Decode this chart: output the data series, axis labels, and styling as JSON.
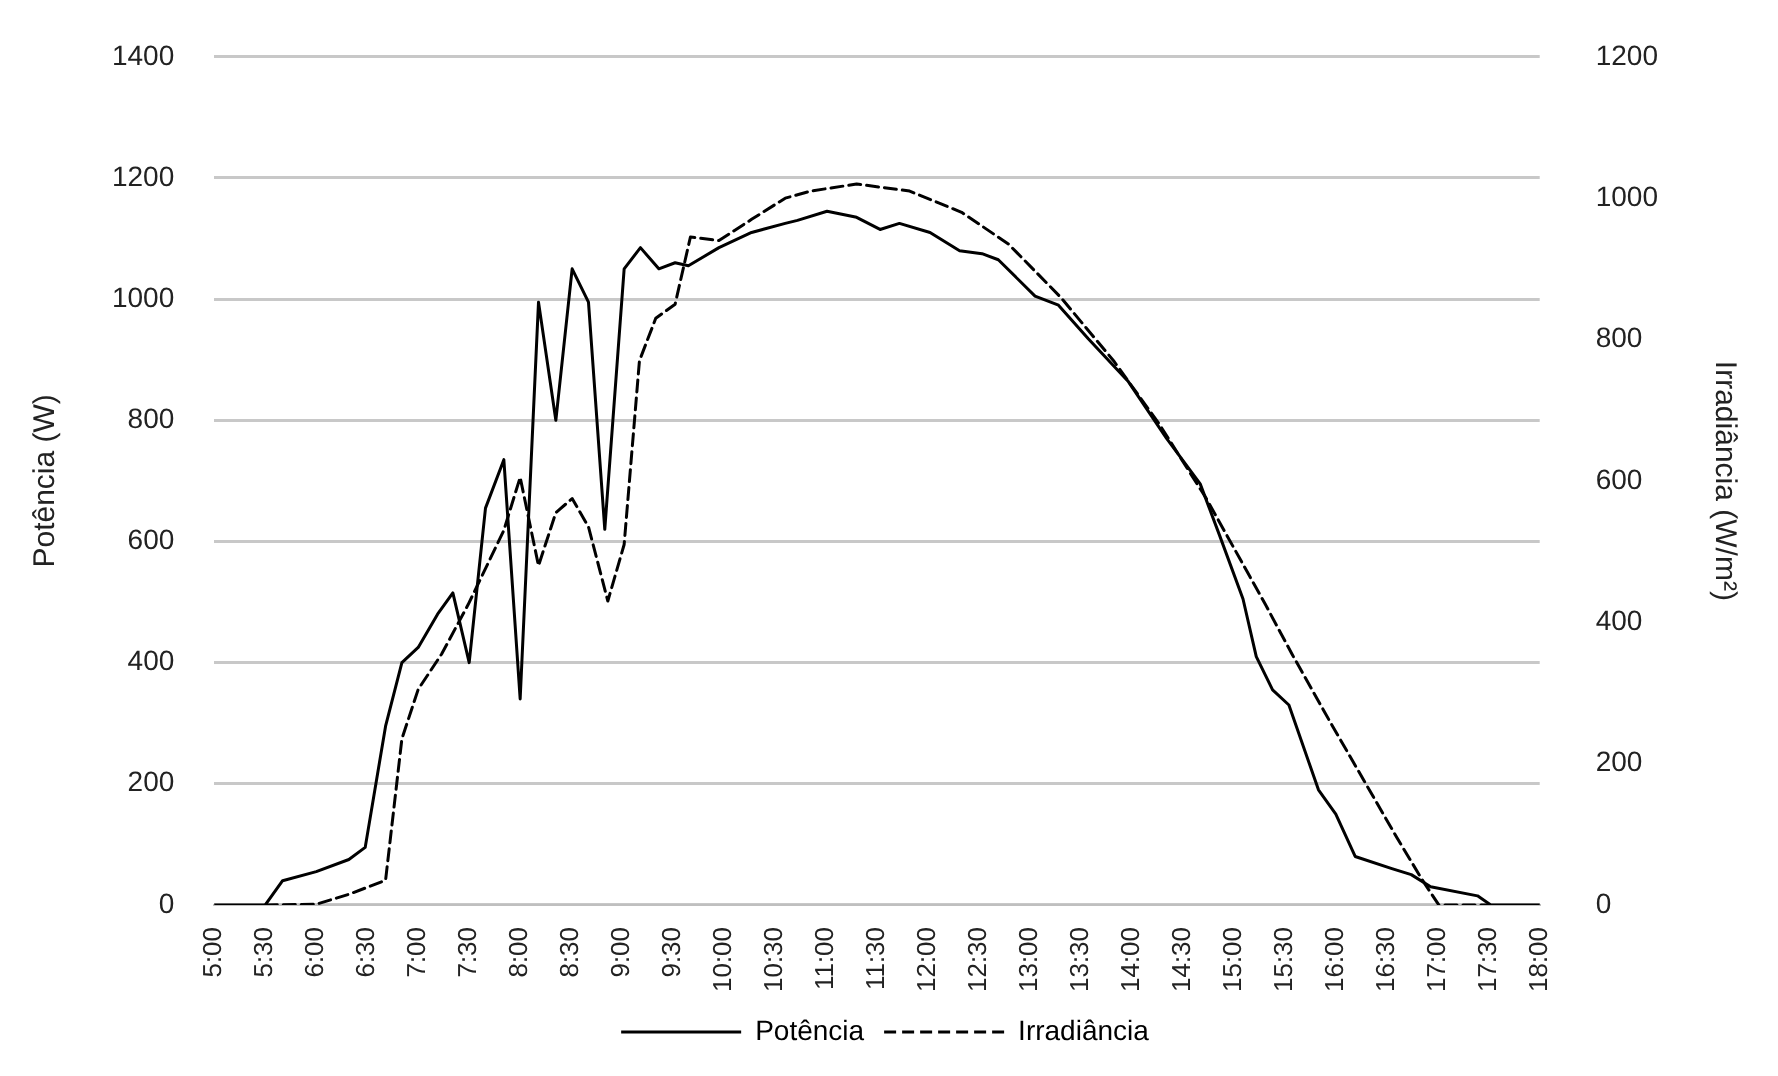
{
  "chart_data": {
    "type": "line",
    "xlim": [
      5,
      18
    ],
    "xticks": [
      {
        "value": 5,
        "label": "5:00"
      },
      {
        "value": 5.5,
        "label": "5:30"
      },
      {
        "value": 6,
        "label": "6:00"
      },
      {
        "value": 6.5,
        "label": "6:30"
      },
      {
        "value": 7,
        "label": "7:00"
      },
      {
        "value": 7.5,
        "label": "7:30"
      },
      {
        "value": 8,
        "label": "8:00"
      },
      {
        "value": 8.5,
        "label": "8:30"
      },
      {
        "value": 9,
        "label": "9:00"
      },
      {
        "value": 9.5,
        "label": "9:30"
      },
      {
        "value": 10,
        "label": "10:00"
      },
      {
        "value": 10.5,
        "label": "10:30"
      },
      {
        "value": 11,
        "label": "11:00"
      },
      {
        "value": 11.5,
        "label": "11:30"
      },
      {
        "value": 12,
        "label": "12:00"
      },
      {
        "value": 12.5,
        "label": "12:30"
      },
      {
        "value": 13,
        "label": "13:00"
      },
      {
        "value": 13.5,
        "label": "13:30"
      },
      {
        "value": 14,
        "label": "14:00"
      },
      {
        "value": 14.5,
        "label": "14:30"
      },
      {
        "value": 15,
        "label": "15:00"
      },
      {
        "value": 15.5,
        "label": "15:30"
      },
      {
        "value": 16,
        "label": "16:00"
      },
      {
        "value": 16.5,
        "label": "16:30"
      },
      {
        "value": 17,
        "label": "17:00"
      },
      {
        "value": 17.5,
        "label": "17:30"
      },
      {
        "value": 18,
        "label": "18:00"
      }
    ],
    "ylabel": "Potência (W)",
    "y2label": "Irradiância (W/m²)",
    "ylim": [
      0,
      1400
    ],
    "yticks": [
      0,
      200,
      400,
      600,
      800,
      1000,
      1200,
      1400
    ],
    "y2lim": [
      0,
      1200
    ],
    "y2ticks": [
      0,
      200,
      400,
      600,
      800,
      1000,
      1200
    ],
    "grid": "y",
    "legend": "bottom",
    "marker": "none",
    "series": [
      {
        "name": "Potência",
        "color": "#000000",
        "line_style": "solid",
        "x": [
          5,
          5.5,
          5.67,
          6,
          6.32,
          6.48,
          6.68,
          6.84,
          7,
          7.19,
          7.34,
          7.5,
          7.66,
          7.84,
          8,
          8.18,
          8.35,
          8.51,
          8.67,
          8.83,
          9.02,
          9.18,
          9.36,
          9.52,
          9.65,
          9.95,
          10.27,
          10.6,
          10.72,
          11.01,
          11.3,
          11.53,
          11.72,
          12.02,
          12.31,
          12.53,
          12.69,
          13.05,
          13.28,
          13.57,
          13.96,
          14.34,
          14.67,
          14.86,
          15.09,
          15.22,
          15.38,
          15.54,
          15.83,
          16,
          16.19,
          16.55,
          16.74,
          16.93,
          17.39,
          17.52,
          18
        ],
        "values": [
          0,
          0,
          40,
          55,
          75,
          95,
          295,
          400,
          425,
          480,
          515,
          400,
          655,
          735,
          340,
          995,
          800,
          1050,
          995,
          620,
          1050,
          1085,
          1050,
          1060,
          1055,
          1085,
          1110,
          1125,
          1130,
          1145,
          1135,
          1115,
          1125,
          1110,
          1080,
          1075,
          1065,
          1005,
          990,
          935,
          865,
          770,
          695,
          610,
          505,
          410,
          355,
          330,
          190,
          150,
          80,
          60,
          50,
          30,
          15,
          0,
          0
        ]
      },
      {
        "name": "Irradiância",
        "color": "#000000",
        "line_style": "dashed",
        "axis": "y2",
        "x": [
          5.5,
          6,
          6.32,
          6.68,
          6.84,
          7,
          7.23,
          7.49,
          7.84,
          8,
          8.18,
          8.35,
          8.51,
          8.67,
          8.86,
          9.02,
          9.17,
          9.33,
          9.52,
          9.67,
          9.95,
          10.27,
          10.6,
          10.85,
          11.3,
          11.82,
          12.33,
          12.79,
          13.3,
          13.82,
          14.27,
          14.73,
          15.31,
          15.57,
          15.96,
          16.28,
          16.6,
          16.85,
          17.01,
          17.5
        ],
        "values": [
          0,
          1,
          15,
          35,
          235,
          305,
          355,
          425,
          530,
          605,
          480,
          555,
          575,
          535,
          430,
          510,
          770,
          830,
          850,
          945,
          940,
          970,
          1000,
          1010,
          1020,
          1010,
          980,
          935,
          860,
          770,
          680,
          575,
          425,
          355,
          255,
          175,
          95,
          35,
          0,
          0
        ]
      }
    ]
  }
}
